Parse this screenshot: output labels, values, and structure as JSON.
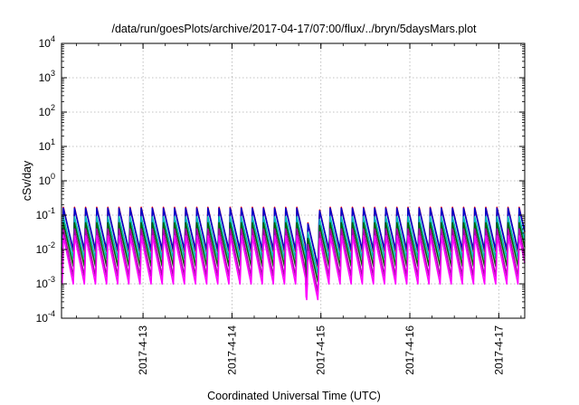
{
  "chart_data": {
    "type": "line",
    "title": "/data/run/goesPlots/archive/2017-04-17/07:00/flux/../bryn/5daysMars.plot",
    "xlabel": "Coordinated Universal Time (UTC)",
    "ylabel": "cSv/day",
    "yscale": "log",
    "ylim": [
      0.0001,
      10000
    ],
    "xlim": [
      "2017-04-12 02:00",
      "2017-04-17 07:00"
    ],
    "x_ticks": [
      "2017-4-13",
      "2017-4-14",
      "2017-4-15",
      "2017-4-16",
      "2017-4-17"
    ],
    "y_ticks": [
      {
        "base": "10",
        "exp": "-4"
      },
      {
        "base": "10",
        "exp": "-3"
      },
      {
        "base": "10",
        "exp": "-2"
      },
      {
        "base": "10",
        "exp": "-1"
      },
      {
        "base": "10",
        "exp": "0"
      },
      {
        "base": "10",
        "exp": "1"
      },
      {
        "base": "10",
        "exp": "2"
      },
      {
        "base": "10",
        "exp": "3"
      },
      {
        "base": "10",
        "exp": "4"
      }
    ],
    "grid": true,
    "legend": "none",
    "pattern": {
      "period_hours": 3,
      "first_peak": "2017-04-12 02:30",
      "dip_start": "2017-04-14 20:00",
      "dip_end": "2017-04-14 23:30"
    },
    "series": [
      {
        "color": "#ff0000",
        "peak": 0.17,
        "trough": 0.008
      },
      {
        "color": "#0000cc",
        "peak": 0.16,
        "trough": 0.009
      },
      {
        "color": "#00bbbb",
        "peak": 0.09,
        "trough": 0.005
      },
      {
        "color": "#006400",
        "peak": 0.06,
        "trough": 0.003
      },
      {
        "color": "#aa00aa",
        "peak": 0.04,
        "trough": 0.0015
      },
      {
        "color": "#ff00ff",
        "peak": 0.025,
        "trough": 0.0009
      }
    ]
  }
}
